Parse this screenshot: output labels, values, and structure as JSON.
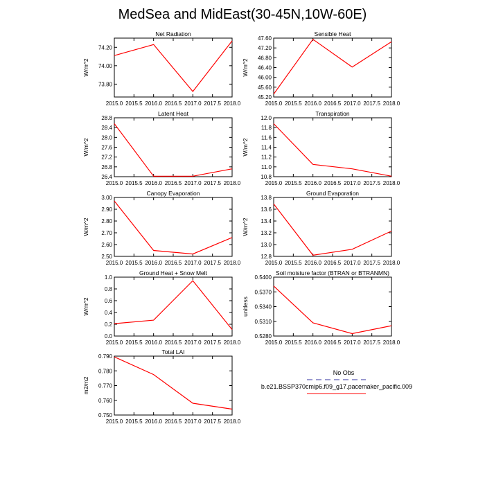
{
  "title": "MedSea and MidEast(30-45N,10W-60E)",
  "line_color": "#ff0000",
  "obs_color": "#9a9ad0",
  "legend": {
    "obs_label": "No Obs",
    "model_label": "b.e21.BSSP370cmip6.f09_g17.pacemaker_pacific.009"
  },
  "chart_data": [
    {
      "type": "line",
      "title": "Net Radiation",
      "ylabel": "W/m^2",
      "xlabel": "",
      "x": [
        2015,
        2016,
        2017,
        2018
      ],
      "xlim": [
        2015,
        2018
      ],
      "xticks": [
        "2015.0",
        "2015.5",
        "2016.0",
        "2016.5",
        "2017.0",
        "2017.5",
        "2018.0"
      ],
      "ylim": [
        73.66,
        74.3
      ],
      "yticks": [
        "73.80",
        "74.00",
        "74.20"
      ],
      "series": [
        {
          "values": [
            74.11,
            74.23,
            73.72,
            74.27
          ]
        }
      ]
    },
    {
      "type": "line",
      "title": "Sensible Heat",
      "ylabel": "W/m^2",
      "xlabel": "",
      "x": [
        2015,
        2016,
        2017,
        2018
      ],
      "xlim": [
        2015,
        2018
      ],
      "xticks": [
        "2015.0",
        "2015.5",
        "2016.0",
        "2016.5",
        "2017.0",
        "2017.5",
        "2018.0"
      ],
      "ylim": [
        45.2,
        47.6
      ],
      "yticks": [
        "45.20",
        "45.60",
        "46.00",
        "46.40",
        "46.80",
        "47.20",
        "47.60"
      ],
      "series": [
        {
          "values": [
            45.32,
            47.55,
            46.42,
            47.45
          ]
        }
      ]
    },
    {
      "type": "line",
      "title": "Latent Heat",
      "ylabel": "W/m^2",
      "xlabel": "",
      "x": [
        2015,
        2016,
        2017,
        2018
      ],
      "xlim": [
        2015,
        2018
      ],
      "xticks": [
        "2015.0",
        "2015.5",
        "2016.0",
        "2016.5",
        "2017.0",
        "2017.5",
        "2018.0"
      ],
      "ylim": [
        26.4,
        28.8
      ],
      "yticks": [
        "26.4",
        "26.8",
        "27.2",
        "27.6",
        "28.0",
        "28.4",
        "28.8"
      ],
      "series": [
        {
          "values": [
            28.56,
            26.42,
            26.42,
            26.72
          ]
        }
      ]
    },
    {
      "type": "line",
      "title": "Transpiration",
      "ylabel": "W/m^2",
      "xlabel": "",
      "x": [
        2015,
        2016,
        2017,
        2018
      ],
      "xlim": [
        2015,
        2018
      ],
      "xticks": [
        "2015.0",
        "2015.5",
        "2016.0",
        "2016.5",
        "2017.0",
        "2017.5",
        "2018.0"
      ],
      "ylim": [
        10.8,
        12.0
      ],
      "yticks": [
        "10.8",
        "11.0",
        "11.2",
        "11.4",
        "11.6",
        "11.8",
        "12.0"
      ],
      "series": [
        {
          "values": [
            11.88,
            11.05,
            10.96,
            10.81
          ]
        }
      ]
    },
    {
      "type": "line",
      "title": "Canopy Evaporation",
      "ylabel": "W/m^2",
      "xlabel": "",
      "x": [
        2015,
        2016,
        2017,
        2018
      ],
      "xlim": [
        2015,
        2018
      ],
      "xticks": [
        "2015.0",
        "2015.5",
        "2016.0",
        "2016.5",
        "2017.0",
        "2017.5",
        "2018.0"
      ],
      "ylim": [
        2.5,
        3.0
      ],
      "yticks": [
        "2.50",
        "2.60",
        "2.70",
        "2.80",
        "2.90",
        "3.00"
      ],
      "series": [
        {
          "values": [
            2.97,
            2.55,
            2.52,
            2.66
          ]
        }
      ]
    },
    {
      "type": "line",
      "title": "Ground Evaporation",
      "ylabel": "W/m^2",
      "xlabel": "",
      "x": [
        2015,
        2016,
        2017,
        2018
      ],
      "xlim": [
        2015,
        2018
      ],
      "xticks": [
        "2015.0",
        "2015.5",
        "2016.0",
        "2016.5",
        "2017.0",
        "2017.5",
        "2018.0"
      ],
      "ylim": [
        12.8,
        13.8
      ],
      "yticks": [
        "12.8",
        "13.0",
        "13.2",
        "13.4",
        "13.6",
        "13.8"
      ],
      "series": [
        {
          "values": [
            13.69,
            12.82,
            12.92,
            13.23
          ]
        }
      ]
    },
    {
      "type": "line",
      "title": "Ground Heat + Snow Melt",
      "ylabel": "W/m^2",
      "xlabel": "",
      "x": [
        2015,
        2016,
        2017,
        2018
      ],
      "xlim": [
        2015,
        2018
      ],
      "xticks": [
        "2015.0",
        "2015.5",
        "2016.0",
        "2016.5",
        "2017.0",
        "2017.5",
        "2018.0"
      ],
      "ylim": [
        0.0,
        1.0
      ],
      "yticks": [
        "0.0",
        "0.2",
        "0.4",
        "0.6",
        "0.8",
        "1.0"
      ],
      "series": [
        {
          "values": [
            0.21,
            0.27,
            0.94,
            0.11
          ]
        }
      ]
    },
    {
      "type": "line",
      "title": "Soil moisture factor (BTRAN or BTRANMN)",
      "ylabel": "unitless",
      "xlabel": "",
      "x": [
        2015,
        2016,
        2017,
        2018
      ],
      "xlim": [
        2015,
        2018
      ],
      "xticks": [
        "2015.0",
        "2015.5",
        "2016.0",
        "2016.5",
        "2017.0",
        "2017.5",
        "2018.0"
      ],
      "ylim": [
        0.528,
        0.54
      ],
      "yticks": [
        "0.5280",
        "0.5310",
        "0.5340",
        "0.5370",
        "0.5400"
      ],
      "series": [
        {
          "values": [
            0.5382,
            0.5307,
            0.5285,
            0.5301
          ]
        }
      ]
    },
    {
      "type": "line",
      "title": "Total LAI",
      "ylabel": "m2/m2",
      "xlabel": "",
      "x": [
        2015,
        2016,
        2017,
        2018
      ],
      "xlim": [
        2015,
        2018
      ],
      "xticks": [
        "2015.0",
        "2015.5",
        "2016.0",
        "2016.5",
        "2017.0",
        "2017.5",
        "2018.0"
      ],
      "ylim": [
        0.75,
        0.79
      ],
      "yticks": [
        "0.750",
        "0.760",
        "0.770",
        "0.780",
        "0.790"
      ],
      "series": [
        {
          "values": [
            0.7895,
            0.7775,
            0.758,
            0.754
          ]
        }
      ]
    }
  ]
}
